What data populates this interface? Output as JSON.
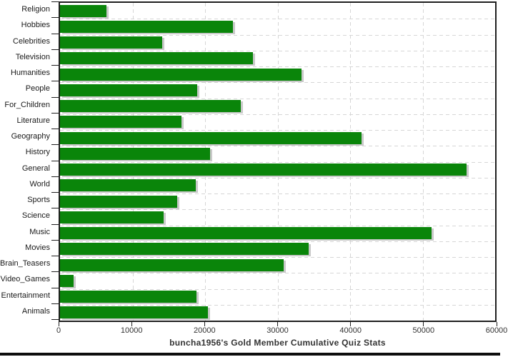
{
  "chart_data": {
    "type": "bar",
    "orientation": "horizontal",
    "title": "buncha1956's Gold Member Cumulative Quiz Stats",
    "categories": [
      "Religion",
      "Hobbies",
      "Celebrities",
      "Television",
      "Humanities",
      "People",
      "For_Children",
      "Literature",
      "Geography",
      "History",
      "General",
      "World",
      "Sports",
      "Science",
      "Music",
      "Movies",
      "Brain_Teasers",
      "Video_Games",
      "Entertainment",
      "Animals"
    ],
    "values": [
      6400,
      23800,
      14100,
      26600,
      33300,
      18900,
      24900,
      16700,
      41600,
      20700,
      56100,
      18700,
      16200,
      14300,
      51200,
      34300,
      30800,
      1900,
      18800,
      20400
    ],
    "xlim": [
      0,
      60000
    ],
    "x_ticks": [
      0,
      10000,
      20000,
      30000,
      40000,
      50000,
      60000
    ],
    "x_tick_labels": [
      "0",
      "10000",
      "20000",
      "30000",
      "40000",
      "50000",
      "60000"
    ],
    "grid": "dashed",
    "legend": "none",
    "colors": {
      "bar": "#0a850a",
      "bar_shadow": "#c9c9c9",
      "grid": "#d6d6d6",
      "axis": "#1f1f1f",
      "text": "#1a1a1a",
      "title": "#333333"
    }
  }
}
